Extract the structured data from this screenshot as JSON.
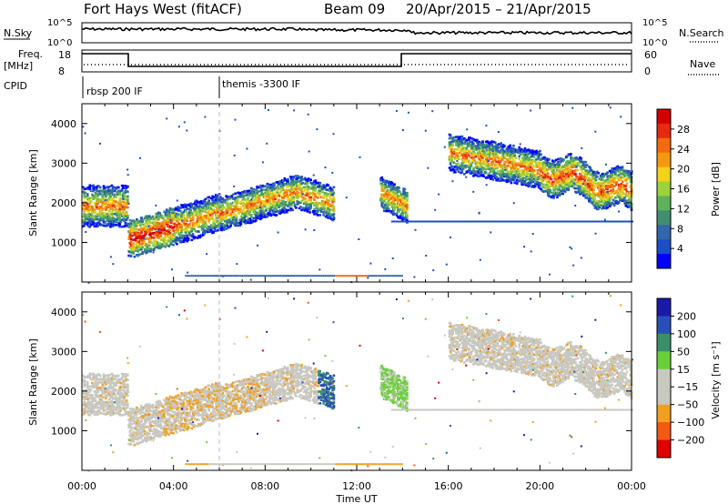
{
  "header": {
    "station": "Fort Hays West (fitACF)",
    "beam": "Beam 09",
    "date_range": "20/Apr/2015 – 21/Apr/2015"
  },
  "top_panels": {
    "nsky_label": "N.Sky",
    "nsky_ticks": [
      "10^5",
      "10^0"
    ],
    "nsearch_label": "N.Search",
    "nsearch_ticks": [
      "10^5",
      "10^0"
    ],
    "freq_label_line1": "Freq.",
    "freq_label_line2": "[MHz]",
    "freq_ticks": [
      "18",
      "8"
    ],
    "nave_label": "Nave",
    "nave_ticks": [
      "60",
      "0"
    ],
    "cpid_label": "CPID",
    "cpid_modes": [
      {
        "label": "rbsp 200 IF",
        "start_hour": 0
      },
      {
        "label": "themis -3300 IF",
        "start_hour": 6
      }
    ]
  },
  "colors": {
    "power_scale": [
      "#0000ff",
      "#1a4fc8",
      "#3366aa",
      "#3f8f6f",
      "#5fb25a",
      "#9ed13a",
      "#f2d21a",
      "#f39a12",
      "#f36a10",
      "#e52a10",
      "#d40000"
    ],
    "velocity_scale": [
      "#e00000",
      "#f25a14",
      "#f0a020",
      "#c8c8c0",
      "#c8c8c0",
      "#6ad03a",
      "#3a8f6a",
      "#2a4fb8",
      "#1a1aa8"
    ]
  },
  "chart_data": [
    {
      "type": "heatmap",
      "name": "power",
      "ylabel": "Slant Range [km]",
      "yticks": [
        1000,
        2000,
        3000,
        4000
      ],
      "ylim": [
        0,
        4500
      ],
      "xlabel": "Time UT",
      "xticks": [
        "00:00",
        "04:00",
        "08:00",
        "12:00",
        "16:00",
        "20:00",
        "00:00"
      ],
      "xlim_hours": [
        0,
        24
      ],
      "colorbar": {
        "label": "Power [dB]",
        "ticks": [
          "28",
          "24",
          "20",
          "16",
          "12",
          "8",
          "4"
        ]
      },
      "echo_bands": [
        {
          "x": [
            0,
            2
          ],
          "y_range_km": [
            1700,
            2300
          ],
          "level": "moderate"
        },
        {
          "x": [
            2,
            6
          ],
          "y_range_km": [
            900,
            1800
          ],
          "level": "high"
        },
        {
          "x": [
            6,
            11
          ],
          "y_range_km": [
            1500,
            2500
          ],
          "level": "moderate"
        },
        {
          "x": [
            13,
            14.2
          ],
          "y_range_km": [
            1500,
            2400
          ],
          "level": "moderate"
        },
        {
          "x": [
            16,
            24
          ],
          "y_range_km": [
            1800,
            3600
          ],
          "level": "high"
        }
      ]
    },
    {
      "type": "heatmap",
      "name": "velocity",
      "ylabel": "Slant Range [km]",
      "yticks": [
        1000,
        2000,
        3000,
        4000
      ],
      "ylim": [
        0,
        4500
      ],
      "xlabel": "Time UT",
      "xticks": [
        "00:00",
        "04:00",
        "08:00",
        "12:00",
        "16:00",
        "20:00",
        "00:00"
      ],
      "xlim_hours": [
        0,
        24
      ],
      "colorbar": {
        "label": "Velocity [m s⁻¹]",
        "ticks": [
          "200",
          "100",
          "50",
          "15",
          "−15",
          "−50",
          "−100",
          "−200"
        ]
      }
    }
  ]
}
